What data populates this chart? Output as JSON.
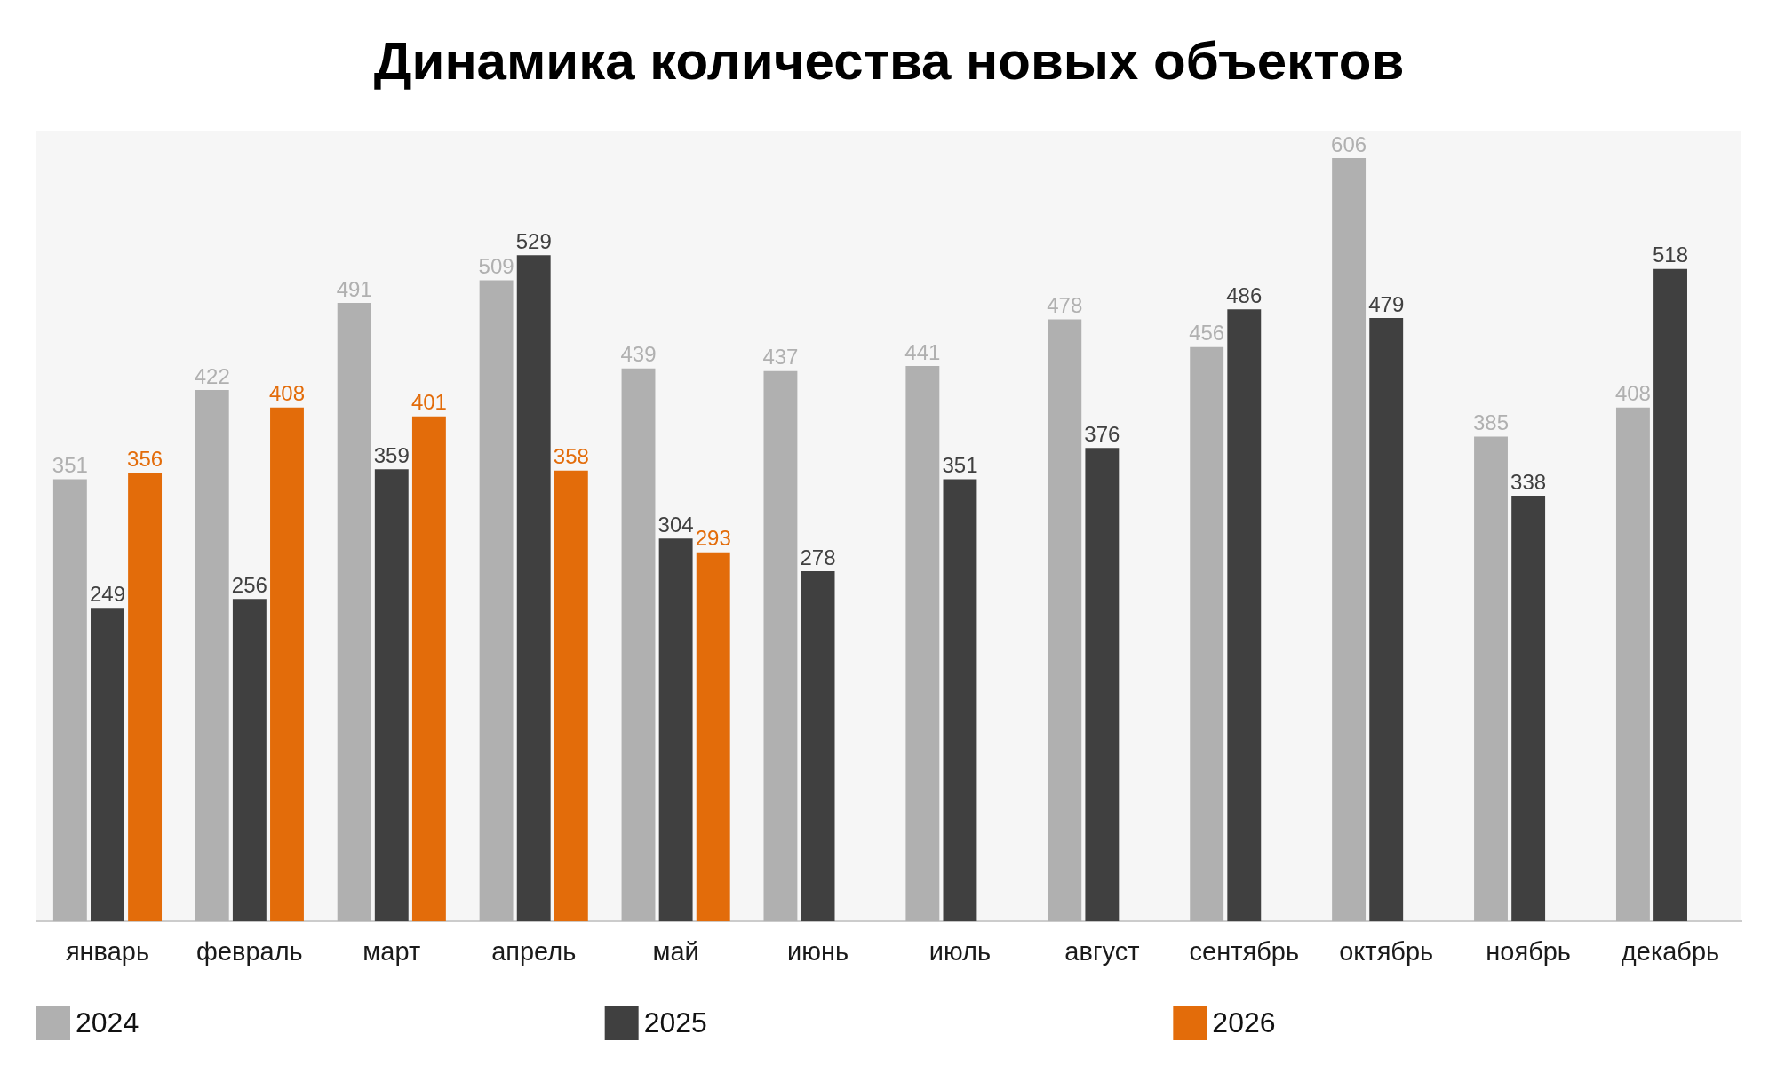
{
  "chart_data": {
    "type": "bar",
    "title": "Динамика количества новых объектов",
    "categories": [
      "январь",
      "февраль",
      "март",
      "апрель",
      "май",
      "июнь",
      "июль",
      "август",
      "сентябрь",
      "октябрь",
      "ноябрь",
      "декабрь"
    ],
    "series": [
      {
        "name": "2024",
        "color": "#b0b0b0",
        "values": [
          351,
          422,
          491,
          509,
          439,
          437,
          441,
          478,
          456,
          606,
          385,
          408
        ]
      },
      {
        "name": "2025",
        "color": "#404040",
        "values": [
          249,
          256,
          359,
          529,
          304,
          278,
          351,
          376,
          486,
          479,
          338,
          518
        ]
      },
      {
        "name": "2026",
        "color": "#e36c0a",
        "values": [
          356,
          408,
          401,
          358,
          293,
          null,
          null,
          null,
          null,
          null,
          null,
          null
        ]
      }
    ],
    "data_labels": true,
    "legend": "bottom",
    "tick_labels": "x"
  }
}
